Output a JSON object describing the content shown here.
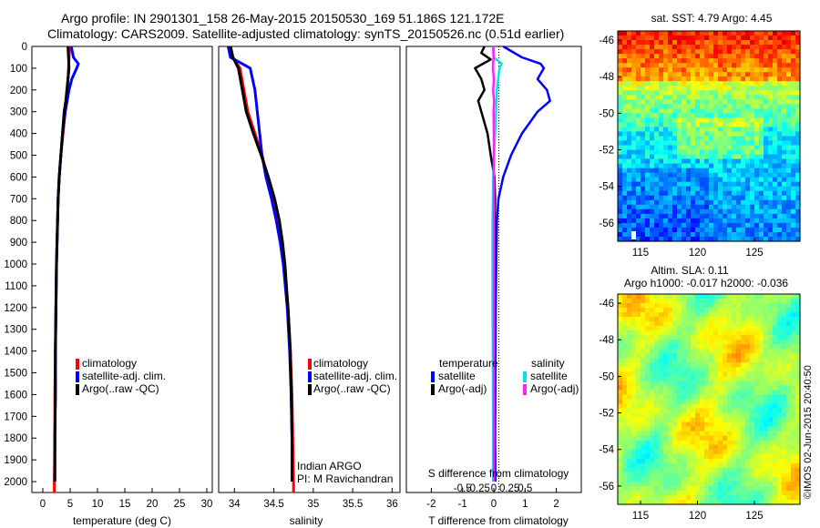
{
  "header": {
    "line1": "Argo profile: IN 2901301_158 26-May-2015 20150530_169 51.186S 121.172E",
    "line2": "Climatology: CARS2009. Satellite-adjusted climatology: synTS_20150526.nc (0.51d earlier)"
  },
  "colors": {
    "climatology": "#ff0000",
    "satellite": "#0000ff",
    "argo": "#000000",
    "salinity_satellite": "#00e5e5",
    "salinity_argo": "#ff22ff"
  },
  "chart_data": [
    {
      "type": "line",
      "name": "temperature-panel",
      "xlabel": "temperature (deg C)",
      "xlim": [
        -2,
        31
      ],
      "ylim": [
        2050,
        0
      ],
      "yticks": [
        0,
        100,
        200,
        300,
        400,
        500,
        600,
        700,
        800,
        900,
        1000,
        1100,
        1200,
        1300,
        1400,
        1500,
        1600,
        1700,
        1800,
        1900,
        2000
      ],
      "xticks": [
        0,
        5,
        10,
        15,
        20,
        25,
        30
      ],
      "legend": [
        "climatology",
        "satellite-adj. clim.",
        "Argo(..raw -QC)"
      ],
      "series": [
        {
          "name": "climatology",
          "depth": [
            0,
            50,
            100,
            150,
            200,
            300,
            400,
            500,
            600,
            700,
            800,
            900,
            1000,
            1200,
            1400,
            1600,
            1800,
            2000,
            2050
          ],
          "values": [
            4.9,
            4.8,
            4.7,
            4.6,
            4.5,
            4.1,
            3.7,
            3.3,
            3.0,
            2.8,
            2.7,
            2.6,
            2.5,
            2.4,
            2.3,
            2.2,
            2.2,
            2.1,
            2.1
          ]
        },
        {
          "name": "satellite-adj. clim.",
          "depth": [
            0,
            50,
            80,
            100,
            150,
            200,
            300,
            400,
            500,
            600,
            700,
            800,
            900,
            1000,
            1200,
            1400,
            1600,
            1800,
            2000
          ],
          "values": [
            5.2,
            5.6,
            6.5,
            6.2,
            5.3,
            4.8,
            4.1,
            3.6,
            3.3,
            3.0,
            2.8,
            2.7,
            2.6,
            2.5,
            2.4,
            2.3,
            2.3,
            2.2,
            2.2
          ]
        },
        {
          "name": "Argo(..raw -QC)",
          "depth": [
            0,
            50,
            100,
            150,
            200,
            250,
            300,
            400,
            500,
            600,
            700,
            800,
            900,
            1000,
            1200,
            1400,
            1600,
            1800,
            2000
          ],
          "values": [
            4.6,
            4.7,
            4.8,
            4.6,
            4.4,
            4.2,
            3.9,
            3.6,
            3.3,
            3.0,
            2.8,
            2.7,
            2.6,
            2.5,
            2.4,
            2.3,
            2.3,
            2.2,
            2.2
          ]
        }
      ]
    },
    {
      "type": "line",
      "name": "salinity-panel",
      "xlabel": "salinity",
      "xlim": [
        33.8,
        36.1
      ],
      "ylim": [
        2050,
        0
      ],
      "xticks": [
        34,
        34.5,
        35,
        35.5,
        36
      ],
      "legend": [
        "climatology",
        "satellite-adj. clim.",
        "Argo(..raw -QC)"
      ],
      "annotation": [
        "Indian ARGO",
        "PI: M Ravichandran"
      ],
      "series": [
        {
          "name": "climatology",
          "depth": [
            0,
            50,
            100,
            200,
            300,
            400,
            500,
            600,
            700,
            800,
            900,
            1000,
            1200,
            1400,
            1600,
            1800,
            2000,
            2050
          ],
          "values": [
            33.95,
            33.98,
            34.07,
            34.12,
            34.17,
            34.26,
            34.35,
            34.42,
            34.5,
            34.56,
            34.6,
            34.63,
            34.68,
            34.71,
            34.73,
            34.74,
            34.75,
            34.75
          ]
        },
        {
          "name": "satellite-adj. clim.",
          "depth": [
            0,
            50,
            80,
            100,
            200,
            300,
            400,
            500,
            600,
            700,
            800,
            900,
            1000,
            1200,
            1400,
            1600,
            1800,
            2000
          ],
          "values": [
            33.92,
            33.95,
            34.1,
            34.2,
            34.26,
            34.29,
            34.32,
            34.35,
            34.4,
            34.47,
            34.53,
            34.58,
            34.62,
            34.67,
            34.7,
            34.72,
            34.73,
            34.73
          ]
        },
        {
          "name": "Argo(..raw -QC)",
          "depth": [
            0,
            50,
            100,
            200,
            300,
            400,
            500,
            600,
            700,
            800,
            900,
            1000,
            1200,
            1400,
            1600,
            1800,
            2000
          ],
          "values": [
            33.95,
            33.98,
            34.05,
            34.1,
            34.15,
            34.24,
            34.34,
            34.43,
            34.51,
            34.57,
            34.61,
            34.64,
            34.68,
            34.71,
            34.72,
            34.73,
            34.73
          ]
        }
      ]
    },
    {
      "type": "line",
      "name": "difference-panel",
      "xlabel": "T difference from climatology",
      "xlabel2": "S difference from climatology",
      "xlim": [
        -2.8,
        2.8
      ],
      "ylim": [
        2050,
        0
      ],
      "xticks": [
        -2,
        -1,
        0,
        1,
        2
      ],
      "xticks2": [
        "-0.5",
        "-0.25",
        "0",
        "0.25",
        "0.5"
      ],
      "legend_groups": [
        {
          "title": "temperature",
          "items": [
            "satellite",
            "Argo(-adj)"
          ]
        },
        {
          "title": "salinity",
          "items": [
            "satellite",
            "Argo(-adj)"
          ]
        }
      ],
      "series": [
        {
          "name": "temperature satellite",
          "depth": [
            0,
            50,
            80,
            100,
            150,
            200,
            250,
            300,
            400,
            500,
            600,
            700,
            800,
            1000,
            1200,
            1500,
            1800,
            2000
          ],
          "values": [
            0.3,
            0.9,
            1.5,
            1.6,
            1.4,
            1.7,
            1.8,
            1.4,
            0.9,
            0.55,
            0.3,
            0.15,
            0.1,
            0.08,
            0.06,
            0.05,
            0.04,
            0.05
          ]
        },
        {
          "name": "temperature Argo(-adj)",
          "depth": [
            0,
            30,
            60,
            100,
            150,
            200,
            250,
            300,
            400,
            500,
            600,
            700,
            800,
            1000,
            1200,
            1500,
            1800,
            2000
          ],
          "values": [
            -0.3,
            -0.4,
            -0.1,
            -0.6,
            -0.4,
            -0.3,
            -0.5,
            -0.4,
            -0.2,
            -0.1,
            0.02,
            0.04,
            0.03,
            0.02,
            0.01,
            0.0,
            0.0,
            0.0
          ]
        },
        {
          "name": "salinity satellite",
          "depth": [
            0,
            50,
            80,
            100,
            150,
            200,
            300,
            400,
            500,
            600,
            700,
            800,
            1000,
            1200,
            1500,
            1800,
            2000
          ],
          "values": [
            -0.01,
            0.0,
            0.25,
            0.18,
            0.14,
            0.1,
            0.07,
            0.04,
            0.01,
            -0.02,
            -0.03,
            -0.04,
            -0.04,
            -0.04,
            -0.03,
            -0.02,
            -0.02
          ]
        },
        {
          "name": "salinity Argo(-adj)",
          "depth": [
            0,
            50,
            100,
            150,
            200,
            250,
            300,
            400,
            500,
            600,
            800,
            1000,
            1200,
            1500,
            1800,
            2000
          ],
          "values": [
            -0.02,
            -0.01,
            -0.03,
            0.0,
            -0.02,
            0.01,
            -0.01,
            0.0,
            0.0,
            0.0,
            0.0,
            0.0,
            0.0,
            0.0,
            0.0,
            0.0
          ]
        }
      ]
    },
    {
      "type": "heatmap",
      "name": "sst-map",
      "title": "sat. SST: 4.79  Argo: 4.45",
      "xticks": [
        115,
        120,
        125
      ],
      "yticks": [
        -46,
        -48,
        -50,
        -52,
        -54,
        -56
      ],
      "xlim": [
        113,
        129
      ],
      "ylim": [
        -57,
        -45.5
      ]
    },
    {
      "type": "heatmap",
      "name": "sla-map",
      "title": "Altim. SLA: 0.11",
      "subtitle": "Argo h1000: -0.017  h2000: -0.036",
      "xticks": [
        115,
        120,
        125
      ],
      "yticks": [
        -46,
        -48,
        -50,
        -52,
        -54,
        -56
      ],
      "xlim": [
        113,
        129
      ],
      "ylim": [
        -57,
        -45.5
      ]
    }
  ],
  "footer": {
    "credit": "©IMOS 02-Jun-2015 20:40:50"
  }
}
